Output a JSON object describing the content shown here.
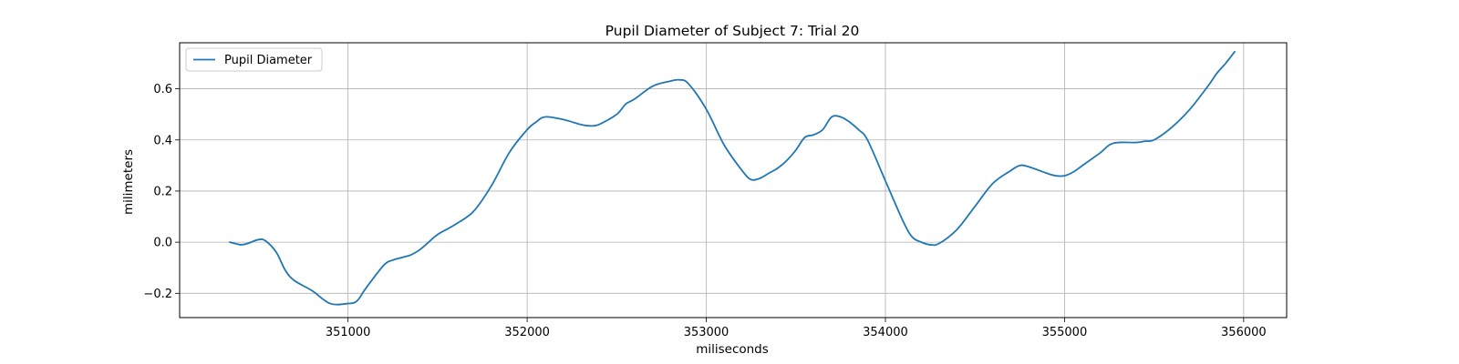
{
  "chart_data": {
    "type": "line",
    "title": "Pupil Diameter of Subject 7: Trial 20",
    "xlabel": "miliseconds",
    "ylabel": "milimeters",
    "xlim": [
      350060,
      356240
    ],
    "ylim": [
      -0.295,
      0.78
    ],
    "xticks": [
      351000,
      352000,
      353000,
      354000,
      355000,
      356000
    ],
    "xtick_labels": [
      "351000",
      "352000",
      "353000",
      "354000",
      "355000",
      "356000"
    ],
    "yticks": [
      -0.2,
      0.0,
      0.2,
      0.4,
      0.6
    ],
    "ytick_labels": [
      "−0.2",
      "0.0",
      "0.2",
      "0.4",
      "0.6"
    ],
    "grid": true,
    "legend_position": "upper-left",
    "color": "#1f77b4",
    "series": [
      {
        "name": "Pupil Diameter",
        "x": [
          350340,
          350400,
          350440,
          350500,
          350540,
          350600,
          350650,
          350700,
          350800,
          350900,
          351000,
          351050,
          351100,
          351200,
          351250,
          351300,
          351350,
          351400,
          351450,
          351500,
          351600,
          351700,
          351800,
          351900,
          352000,
          352050,
          352100,
          352200,
          352300,
          352350,
          352400,
          352500,
          352550,
          352600,
          352700,
          352800,
          352850,
          352900,
          353000,
          353100,
          353200,
          353250,
          353300,
          353350,
          353400,
          353450,
          353500,
          353550,
          353600,
          353650,
          353700,
          353750,
          353800,
          353850,
          353900,
          354000,
          354100,
          354150,
          354200,
          354250,
          354300,
          354400,
          354500,
          354600,
          354700,
          354750,
          354800,
          354900,
          354950,
          355000,
          355050,
          355100,
          355200,
          355250,
          355300,
          355400,
          355450,
          355500,
          355600,
          355700,
          355800,
          355850,
          355900,
          355950
        ],
        "y": [
          0.0,
          -0.01,
          -0.005,
          0.01,
          0.005,
          -0.04,
          -0.11,
          -0.15,
          -0.19,
          -0.24,
          -0.24,
          -0.23,
          -0.18,
          -0.09,
          -0.07,
          -0.06,
          -0.05,
          -0.03,
          0.0,
          0.03,
          0.07,
          0.12,
          0.22,
          0.35,
          0.44,
          0.47,
          0.49,
          0.48,
          0.46,
          0.455,
          0.46,
          0.5,
          0.54,
          0.56,
          0.61,
          0.63,
          0.635,
          0.62,
          0.52,
          0.38,
          0.28,
          0.245,
          0.25,
          0.27,
          0.29,
          0.32,
          0.36,
          0.41,
          0.42,
          0.44,
          0.49,
          0.49,
          0.47,
          0.44,
          0.4,
          0.24,
          0.08,
          0.02,
          0.0,
          -0.01,
          -0.005,
          0.05,
          0.14,
          0.23,
          0.28,
          0.3,
          0.295,
          0.27,
          0.26,
          0.26,
          0.275,
          0.3,
          0.35,
          0.38,
          0.39,
          0.39,
          0.395,
          0.4,
          0.45,
          0.52,
          0.61,
          0.66,
          0.7,
          0.745
        ]
      }
    ]
  }
}
